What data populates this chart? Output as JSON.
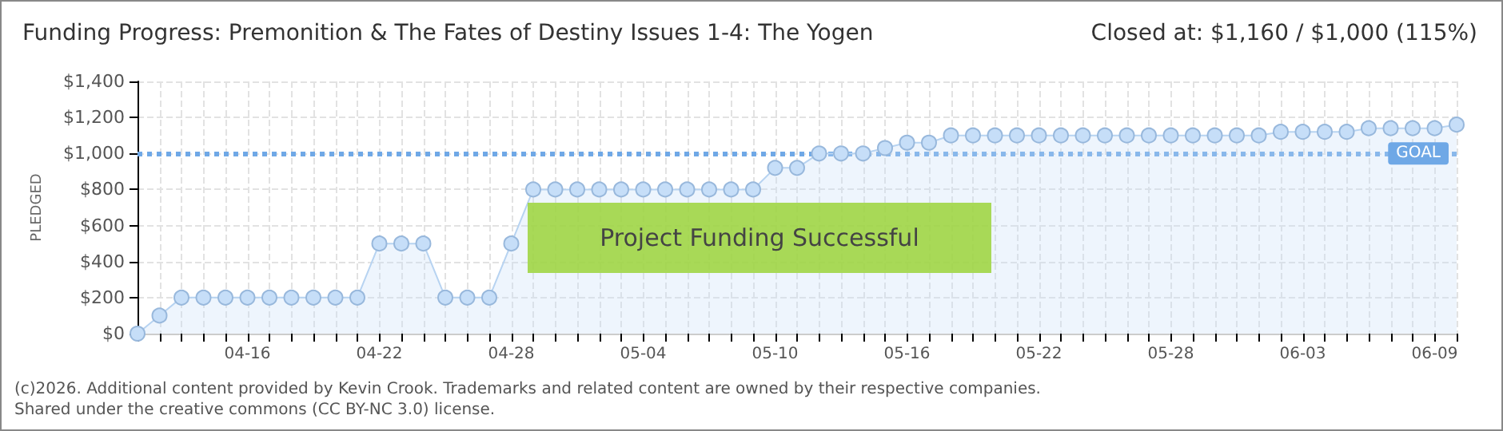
{
  "chart_data": {
    "type": "area",
    "title": "Funding Progress: Premonition & The Fates of Destiny Issues 1-4: The Yogen",
    "subtitle": "Closed at: $1,160 / $1,000 (115%)",
    "ylabel": "PLEDGED",
    "annotations": [
      "Project Funding Successful",
      "(c)2026. Additional content provided by Kevin Crook. Trademarks and related content are owned by their respective companies.",
      "Shared under the creative commons (CC BY-NC 3.0) license."
    ],
    "categories": [
      null,
      null,
      null,
      null,
      null,
      "04-16",
      null,
      null,
      null,
      null,
      null,
      "04-22",
      null,
      null,
      null,
      null,
      null,
      "04-28",
      null,
      null,
      null,
      null,
      null,
      "05-04",
      null,
      null,
      null,
      null,
      null,
      "05-10",
      null,
      null,
      null,
      null,
      null,
      "05-16",
      null,
      null,
      null,
      null,
      null,
      "05-22",
      null,
      null,
      null,
      null,
      null,
      "05-28",
      null,
      null,
      null,
      null,
      null,
      "06-03",
      null,
      null,
      null,
      null,
      null,
      "06-09",
      null
    ],
    "series": [
      {
        "color": "#c6def8",
        "values": [
          0,
          100,
          200,
          200,
          200,
          200,
          200,
          200,
          200,
          200,
          200,
          500,
          500,
          500,
          200,
          200,
          200,
          500,
          800,
          800,
          800,
          800,
          800,
          800,
          800,
          800,
          800,
          800,
          800,
          920,
          920,
          1000,
          1000,
          1000,
          1030,
          1060,
          1060,
          1100,
          1100,
          1100,
          1100,
          1100,
          1100,
          1100,
          1100,
          1100,
          1100,
          1100,
          1100,
          1100,
          1100,
          1100,
          1120,
          1120,
          1120,
          1120,
          1140,
          1140,
          1140,
          1140,
          1160
        ]
      }
    ],
    "ylim": [
      0,
      1400
    ],
    "yticks": [
      {
        "value": 0,
        "label": "$0"
      },
      {
        "value": 200,
        "label": "$200"
      },
      {
        "value": 400,
        "label": "$400"
      },
      {
        "value": 600,
        "label": "$600"
      },
      {
        "value": 800,
        "label": "$800"
      },
      {
        "value": 1000,
        "label": "$1,000"
      },
      {
        "value": 1200,
        "label": "$1,200"
      },
      {
        "value": 1400,
        "label": "$1,400"
      }
    ],
    "ref_lines": [
      {
        "axis": "y",
        "value": 1000,
        "label": "GOAL",
        "color": "#6fa8e6",
        "line_style": "dotted"
      }
    ],
    "grid": true,
    "marker": "circle",
    "line_style": "solid"
  }
}
